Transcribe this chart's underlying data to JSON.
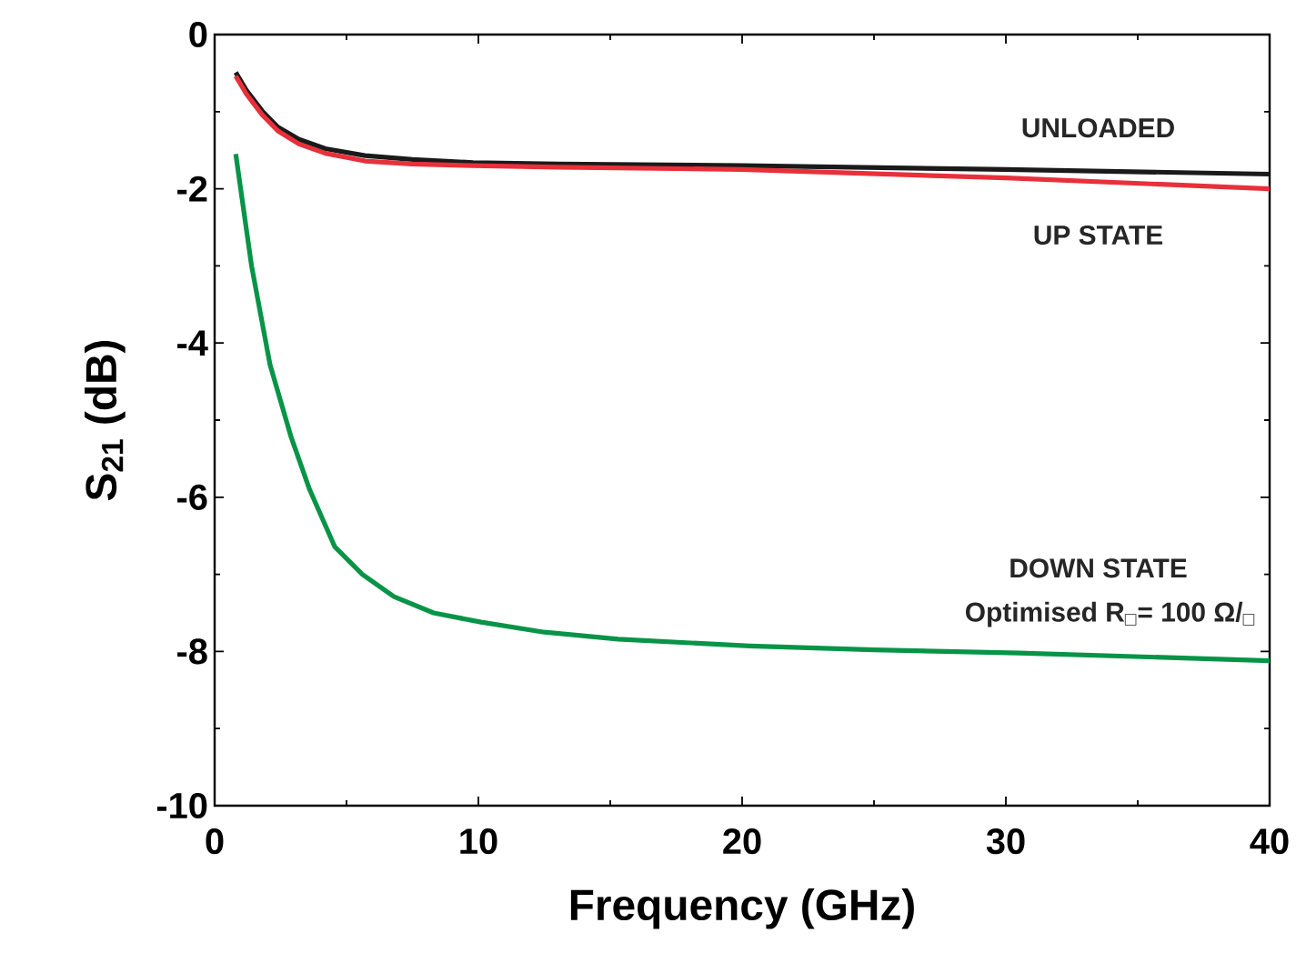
{
  "chart_data": {
    "type": "line",
    "xlabel": "Frequency (GHz)",
    "ylabel": "S$_{21}$ (dB)",
    "xlim": [
      0,
      40
    ],
    "ylim": [
      -10,
      0
    ],
    "xticks": [
      0,
      10,
      20,
      30,
      40
    ],
    "yticks": [
      -10,
      -8,
      -6,
      -4,
      -2,
      0
    ],
    "marker": "none",
    "line_style": "solid",
    "annotations": [
      "Optimised R$_{□}$= 100 Ω/$_{□}$"
    ],
    "series": [
      {
        "name": "UNLOADED",
        "color": "#1a1a1a",
        "x": [
          0.8,
          1.2,
          1.8,
          2.4,
          3.2,
          4.2,
          5.7,
          7.5,
          9.8,
          13,
          20,
          30,
          40
        ],
        "values": [
          -0.49,
          -0.72,
          -0.99,
          -1.2,
          -1.36,
          -1.48,
          -1.57,
          -1.62,
          -1.66,
          -1.68,
          -1.7,
          -1.75,
          -1.81
        ]
      },
      {
        "name": "UP STATE",
        "color": "#e8303a",
        "x": [
          0.8,
          1.2,
          1.8,
          2.4,
          3.2,
          4.2,
          5.7,
          7.5,
          9.8,
          13,
          20,
          30,
          40
        ],
        "values": [
          -0.54,
          -0.77,
          -1.04,
          -1.25,
          -1.42,
          -1.54,
          -1.64,
          -1.68,
          -1.7,
          -1.72,
          -1.75,
          -1.86,
          -2.0
        ]
      },
      {
        "name": "DOWN STATE",
        "color": "#079447",
        "x": [
          0.8,
          1.4,
          2.1,
          2.9,
          3.6,
          4.55,
          5.6,
          6.8,
          8.3,
          10.1,
          12.5,
          15.3,
          20.3,
          25,
          30.5,
          40
        ],
        "values": [
          -1.55,
          -3.0,
          -4.28,
          -5.22,
          -5.9,
          -6.64,
          -7.0,
          -7.29,
          -7.5,
          -7.62,
          -7.75,
          -7.84,
          -7.93,
          -7.98,
          -8.02,
          -8.12
        ]
      }
    ]
  }
}
